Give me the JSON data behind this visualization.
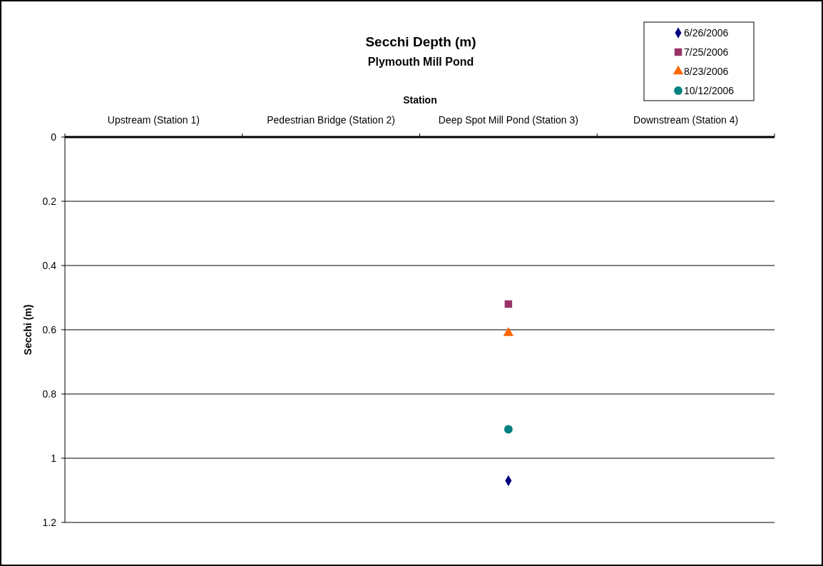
{
  "chart_data": {
    "type": "scatter",
    "title": "Secchi Depth (m)",
    "subtitle": "Plymouth Mill Pond",
    "xlabel": "Station",
    "ylabel": "Secchi (m)",
    "categories": [
      "Upstream (Station 1)",
      "Pedestrian Bridge (Station 2)",
      "Deep Spot Mill Pond (Station 3)",
      "Downstream (Station 4)"
    ],
    "ylim": [
      1.2,
      0
    ],
    "yticks": [
      0,
      0.2,
      0.4,
      0.6,
      0.8,
      1,
      1.2
    ],
    "grid": "y",
    "legend": "top right",
    "series": [
      {
        "name": "6/26/2006",
        "color": "#000080",
        "marker": "diamond",
        "values": [
          null,
          null,
          1.07,
          null
        ]
      },
      {
        "name": "7/25/2006",
        "color": "#993366",
        "marker": "square",
        "values": [
          null,
          null,
          0.52,
          null
        ]
      },
      {
        "name": "8/23/2006",
        "color": "#ff6600",
        "marker": "triangle",
        "values": [
          null,
          null,
          0.61,
          null
        ]
      },
      {
        "name": "10/12/2006",
        "color": "#008080",
        "marker": "circle",
        "values": [
          null,
          null,
          0.91,
          null
        ]
      }
    ]
  }
}
